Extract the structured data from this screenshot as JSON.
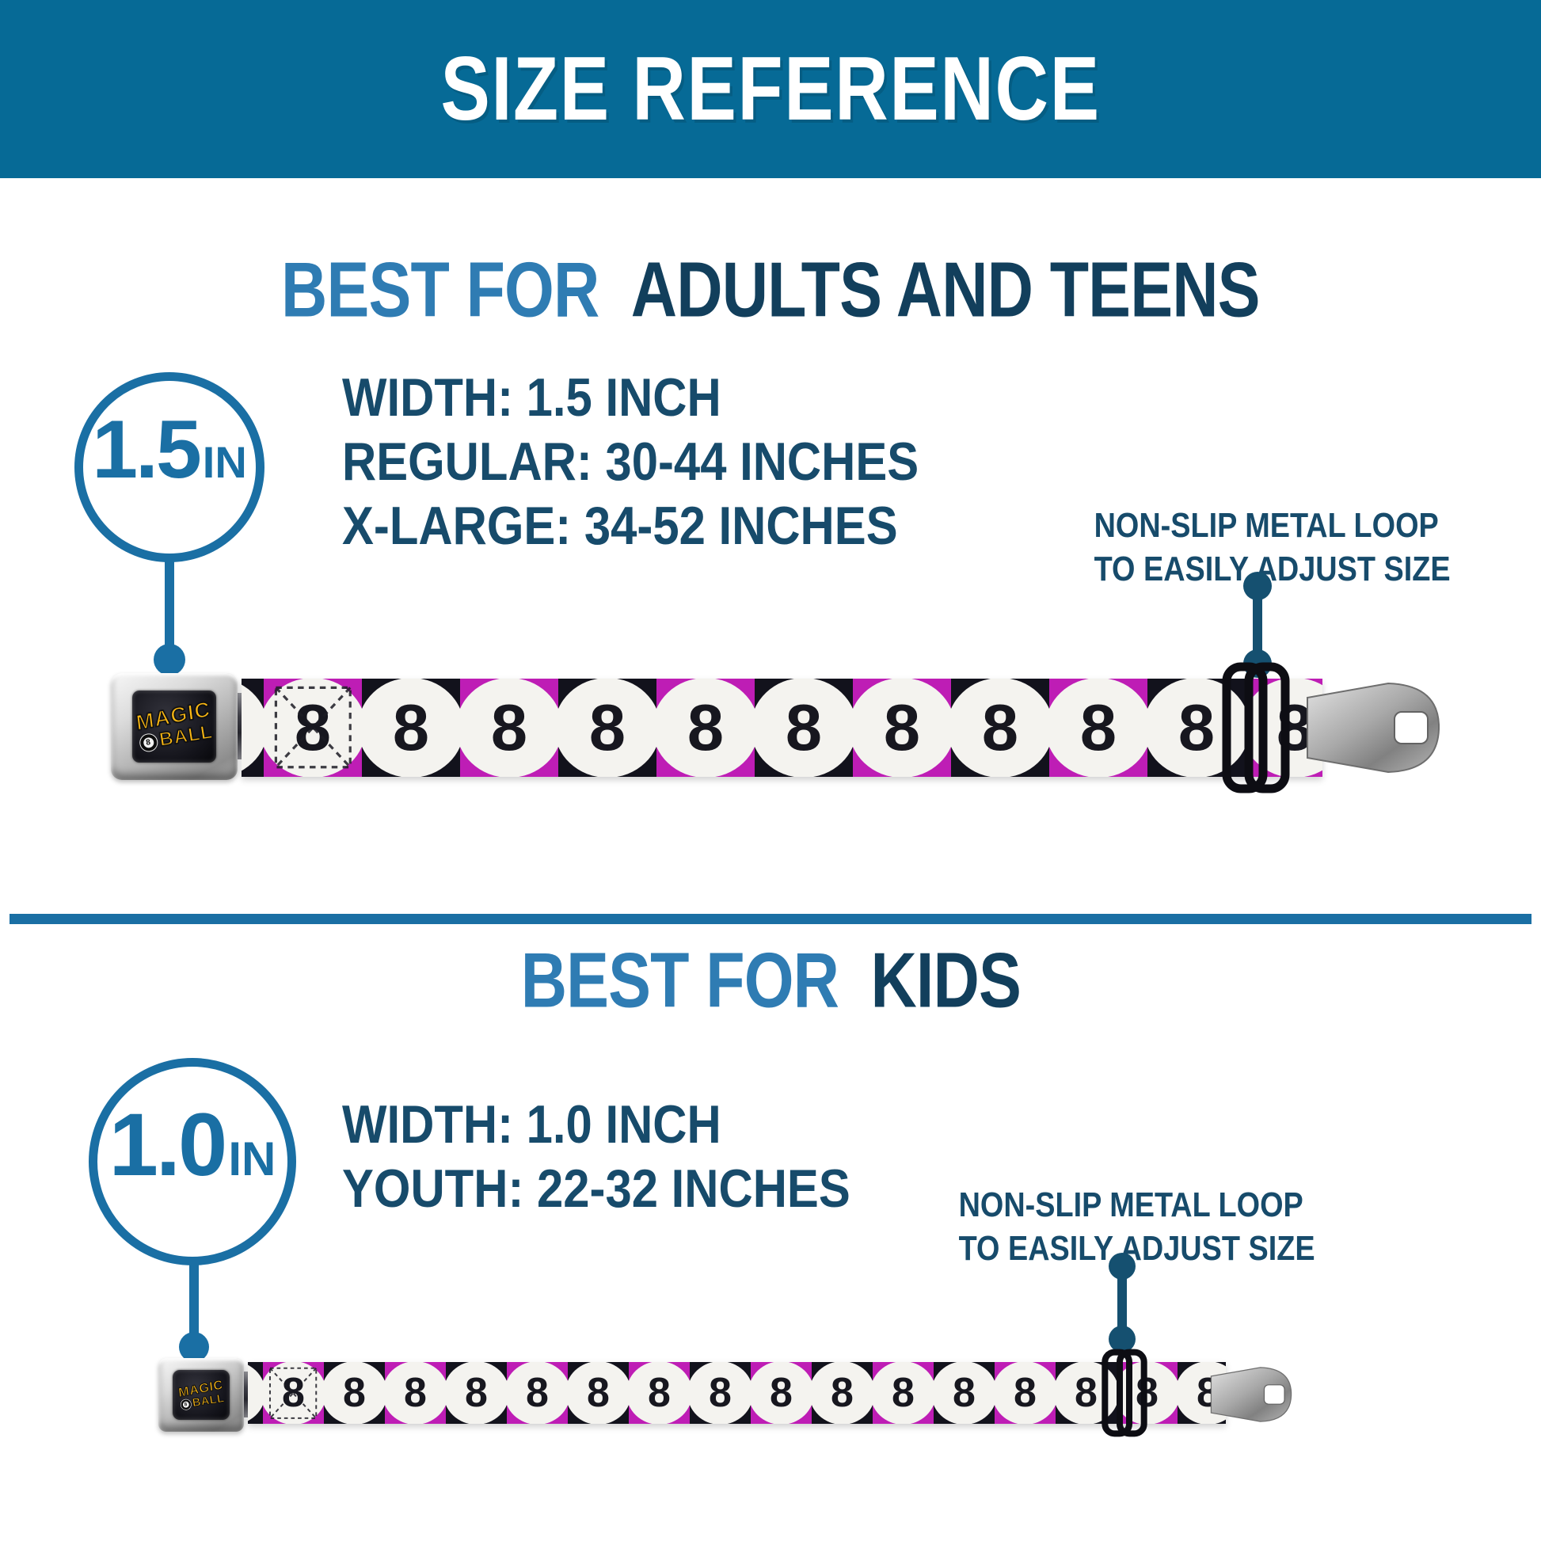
{
  "banner": {
    "title": "SIZE REFERENCE"
  },
  "sections": [
    {
      "id": "adults-and-teens",
      "heading": {
        "prefix": "BEST FOR",
        "rest": "ADULTS AND TEENS"
      },
      "badge": {
        "value": "1.5",
        "unit": "IN"
      },
      "specs": [
        "WIDTH: 1.5 INCH",
        "REGULAR: 30-44 INCHES",
        "X-LARGE: 34-52 INCHES"
      ],
      "callout": {
        "line1": "NON-SLIP METAL LOOP",
        "line2": "TO EASILY ADJUST SIZE"
      }
    },
    {
      "id": "kids",
      "heading": {
        "prefix": "BEST FOR",
        "rest": "KIDS"
      },
      "badge": {
        "value": "1.0",
        "unit": "IN"
      },
      "specs": [
        "WIDTH: 1.0 INCH",
        "YOUTH: 22-32 INCHES"
      ],
      "callout": {
        "line1": "NON-SLIP METAL LOOP",
        "line2": "TO EASILY ADJUST SIZE"
      }
    }
  ],
  "belt": {
    "buckle_logo": {
      "line1": "MAGIC",
      "ball_digit": "8",
      "line2": "BALL"
    },
    "pattern_digit": "8",
    "belts": [
      {
        "cells": 12,
        "stitch_cell": 1
      },
      {
        "cells": 17,
        "stitch_cell": 1
      }
    ]
  },
  "colors": {
    "banner_bg": "#066a96",
    "heading_light_blue": "#2f7cb3",
    "heading_dark_navy": "#123f5c",
    "spec_text": "#174b6b",
    "accent_blue": "#1a6fa4",
    "connector": "#155070",
    "belt_magenta": "#be1db5",
    "belt_black": "#12121c",
    "belt_circle_white": "#f4f3ef",
    "digit_black": "#17171f",
    "buckle_gold": "#fdb913"
  }
}
